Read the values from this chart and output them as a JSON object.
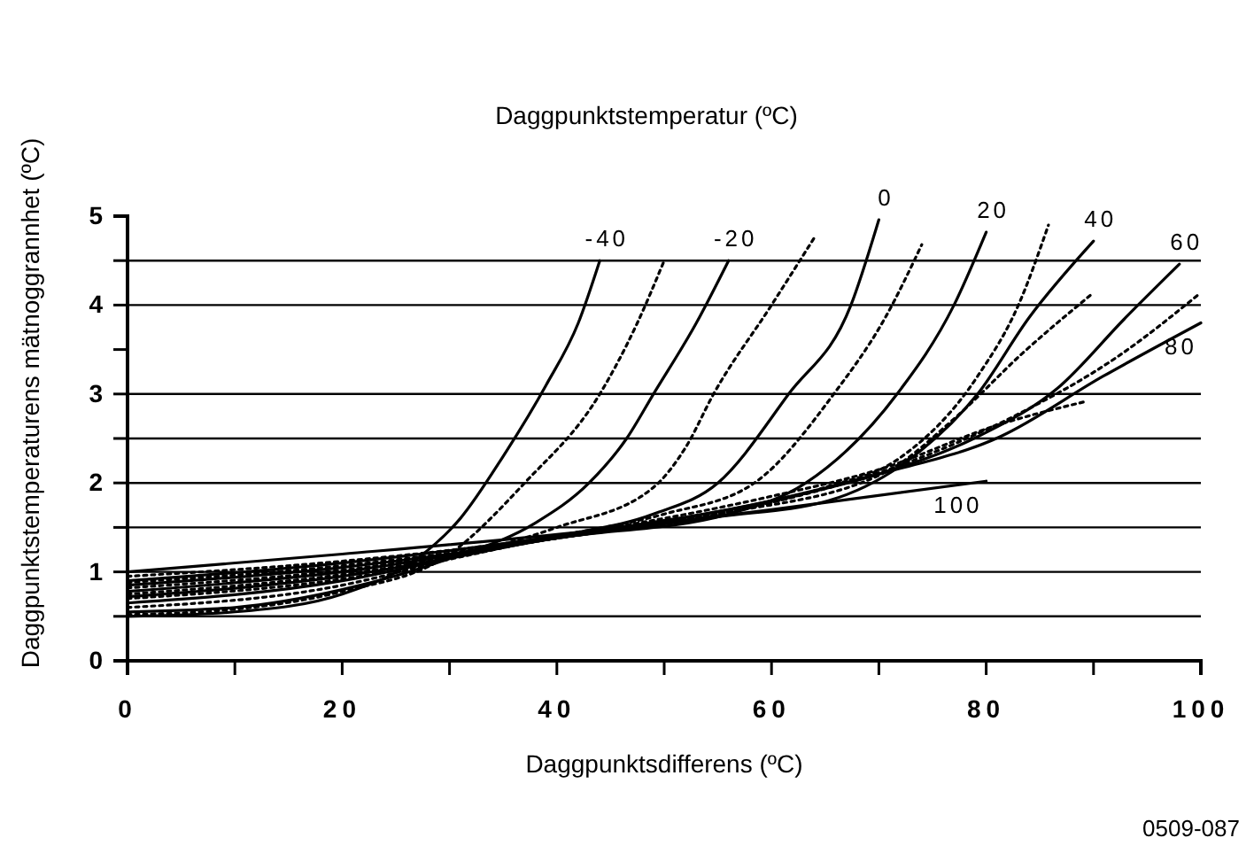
{
  "chart_data": {
    "type": "line",
    "title": "Daggpunktstemperatur (ºC)",
    "xlabel": "Daggpunktsdifferens (ºC)",
    "ylabel": "Daggpunktstemperaturens mätnoggrannhet (ºC)",
    "annotations": [
      "0509-087"
    ],
    "xlim": [
      0,
      100
    ],
    "ylim": [
      0,
      5
    ],
    "xticks": [
      0,
      {
        "value": 10,
        "label": null
      },
      20,
      {
        "value": 30,
        "label": null
      },
      40,
      {
        "value": 50,
        "label": null
      },
      60,
      {
        "value": 70,
        "label": null
      },
      80,
      {
        "value": 90,
        "label": null
      },
      100
    ],
    "yticks": [
      0,
      {
        "value": 0.5,
        "label": null
      },
      1,
      {
        "value": 1.5,
        "label": null
      },
      2,
      {
        "value": 2.5,
        "label": null
      },
      3,
      {
        "value": 3.5,
        "label": null
      },
      4,
      {
        "value": 4.5,
        "label": null
      },
      5
    ],
    "grid": false,
    "marker": "none",
    "ref_lines": [
      {
        "axis": "y",
        "value": 0.5
      },
      {
        "axis": "y",
        "value": 1
      },
      {
        "axis": "y",
        "value": 1.5
      },
      {
        "axis": "y",
        "value": 2
      },
      {
        "axis": "y",
        "value": 2.5
      },
      {
        "axis": "y",
        "value": 3
      },
      {
        "axis": "y",
        "value": 4
      },
      {
        "axis": "y",
        "value": 4.5
      }
    ],
    "series": [
      {
        "name": "-40",
        "color": "#000000",
        "line_style": "solid",
        "x": [
          0,
          10,
          20,
          27,
          31,
          35,
          39,
          42,
          44
        ],
        "values": [
          0.5,
          0.55,
          0.75,
          1.15,
          1.6,
          2.3,
          3.1,
          3.8,
          4.5
        ]
      },
      {
        "color": "#000000",
        "line_style": "dotted",
        "x": [
          0,
          10,
          20,
          30,
          37,
          44,
          47.5,
          50
        ],
        "values": [
          0.52,
          0.58,
          0.78,
          1.2,
          2.0,
          3.0,
          3.8,
          4.5
        ]
      },
      {
        "name": "-20",
        "color": "#000000",
        "line_style": "solid",
        "x": [
          0,
          10,
          20,
          30,
          38,
          43,
          46.5,
          49,
          53,
          56
        ],
        "values": [
          0.55,
          0.6,
          0.8,
          1.15,
          1.55,
          2.0,
          2.5,
          3.0,
          3.8,
          4.5
        ]
      },
      {
        "color": "#000000",
        "line_style": "dotted",
        "x": [
          0,
          20,
          30,
          40,
          49,
          52,
          54.6,
          60,
          64
        ],
        "values": [
          0.6,
          0.85,
          1.15,
          1.5,
          1.95,
          2.4,
          3.0,
          4.0,
          4.76
        ]
      },
      {
        "name": "0",
        "color": "#000000",
        "line_style": "solid",
        "x": [
          0,
          20,
          30,
          40,
          49,
          55,
          61.6,
          67.4,
          70
        ],
        "values": [
          0.65,
          0.9,
          1.15,
          1.4,
          1.65,
          2.0,
          3.0,
          4.0,
          4.96
        ]
      },
      {
        "color": "#000000",
        "line_style": "dotted",
        "x": [
          0,
          20,
          40,
          50,
          58.4,
          65.8,
          70.6,
          74
        ],
        "values": [
          0.7,
          0.92,
          1.4,
          1.65,
          2.0,
          3.0,
          3.86,
          4.68
        ]
      },
      {
        "name": "20",
        "color": "#000000",
        "line_style": "solid",
        "x": [
          0,
          20,
          40,
          56,
          63.2,
          71.7,
          77,
          80
        ],
        "values": [
          0.72,
          0.95,
          1.38,
          1.65,
          2.0,
          3.0,
          4.0,
          4.82
        ]
      },
      {
        "color": "#000000",
        "line_style": "dotted",
        "x": [
          0,
          20,
          40,
          55,
          65,
          71.7,
          79.2,
          83,
          85.8
        ],
        "values": [
          0.75,
          0.97,
          1.38,
          1.65,
          1.95,
          2.26,
          3.2,
          4.0,
          4.9
        ]
      },
      {
        "name": "40",
        "color": "#000000",
        "line_style": "solid",
        "x": [
          0,
          20,
          40,
          55,
          65.3,
          72.8,
          79.2,
          84,
          90
        ],
        "values": [
          0.78,
          1.0,
          1.38,
          1.62,
          1.8,
          2.26,
          3.0,
          3.86,
          4.72
        ]
      },
      {
        "color": "#000000",
        "line_style": "dotted",
        "x": [
          0,
          20,
          40,
          55,
          70.6,
          77,
          83.4,
          89.8
        ],
        "values": [
          0.82,
          1.02,
          1.38,
          1.65,
          2.12,
          2.72,
          3.46,
          4.12
        ]
      },
      {
        "name": "60",
        "color": "#000000",
        "line_style": "solid",
        "x": [
          0,
          20,
          40,
          60,
          70,
          79.2,
          86.6,
          93,
          98
        ],
        "values": [
          0.85,
          1.05,
          1.38,
          1.8,
          2.1,
          2.52,
          3.06,
          3.86,
          4.46
        ]
      },
      {
        "color": "#000000",
        "line_style": "dotted",
        "x": [
          0,
          20,
          40,
          60,
          72,
          83.4,
          92,
          99.8
        ],
        "values": [
          0.88,
          1.07,
          1.38,
          1.78,
          2.2,
          2.8,
          3.4,
          4.12
        ]
      },
      {
        "name": "80",
        "color": "#000000",
        "line_style": "solid",
        "x": [
          0,
          20,
          40,
          60,
          70,
          81.3,
          90.9,
          100
        ],
        "values": [
          0.9,
          1.1,
          1.4,
          1.8,
          2.1,
          2.52,
          3.2,
          3.8
        ]
      },
      {
        "color": "#000000",
        "line_style": "dotted",
        "x": [
          0,
          20,
          40,
          60,
          70,
          81.3,
          89.4
        ],
        "values": [
          0.95,
          1.12,
          1.4,
          1.85,
          2.15,
          2.66,
          2.92
        ]
      },
      {
        "name": "100",
        "color": "#000000",
        "line_style": "solid",
        "x": [
          0,
          20,
          40,
          60,
          80
        ],
        "values": [
          1.0,
          1.2,
          1.42,
          1.7,
          2.02
        ]
      }
    ]
  }
}
